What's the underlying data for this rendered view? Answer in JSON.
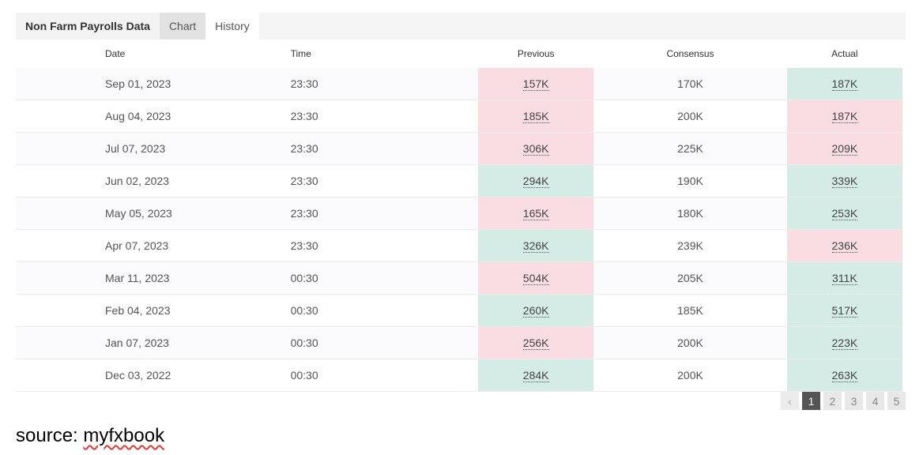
{
  "tabs": {
    "title": "Non Farm Payrolls Data",
    "chart": "Chart",
    "history": "History"
  },
  "columns": [
    "Date",
    "Time",
    "Previous",
    "Consensus",
    "Actual"
  ],
  "rows": [
    {
      "date": "Sep 01, 2023",
      "time": "23:30",
      "previous": "157K",
      "previous_trend": "down",
      "consensus": "170K",
      "actual": "187K",
      "actual_trend": "up"
    },
    {
      "date": "Aug 04, 2023",
      "time": "23:30",
      "previous": "185K",
      "previous_trend": "down",
      "consensus": "200K",
      "actual": "187K",
      "actual_trend": "down"
    },
    {
      "date": "Jul 07, 2023",
      "time": "23:30",
      "previous": "306K",
      "previous_trend": "down",
      "consensus": "225K",
      "actual": "209K",
      "actual_trend": "down"
    },
    {
      "date": "Jun 02, 2023",
      "time": "23:30",
      "previous": "294K",
      "previous_trend": "up",
      "consensus": "190K",
      "actual": "339K",
      "actual_trend": "up"
    },
    {
      "date": "May 05, 2023",
      "time": "23:30",
      "previous": "165K",
      "previous_trend": "down",
      "consensus": "180K",
      "actual": "253K",
      "actual_trend": "up"
    },
    {
      "date": "Apr 07, 2023",
      "time": "23:30",
      "previous": "326K",
      "previous_trend": "up",
      "consensus": "239K",
      "actual": "236K",
      "actual_trend": "down"
    },
    {
      "date": "Mar 11, 2023",
      "time": "00:30",
      "previous": "504K",
      "previous_trend": "down",
      "consensus": "205K",
      "actual": "311K",
      "actual_trend": "up"
    },
    {
      "date": "Feb 04, 2023",
      "time": "00:30",
      "previous": "260K",
      "previous_trend": "up",
      "consensus": "185K",
      "actual": "517K",
      "actual_trend": "up"
    },
    {
      "date": "Jan 07, 2023",
      "time": "00:30",
      "previous": "256K",
      "previous_trend": "down",
      "consensus": "200K",
      "actual": "223K",
      "actual_trend": "up"
    },
    {
      "date": "Dec 03, 2022",
      "time": "00:30",
      "previous": "284K",
      "previous_trend": "up",
      "consensus": "200K",
      "actual": "263K",
      "actual_trend": "up"
    }
  ],
  "pagination": {
    "prev": "‹",
    "pages": [
      "1",
      "2",
      "3",
      "4",
      "5"
    ],
    "current": "1"
  },
  "source": {
    "prefix": "source: ",
    "name": "myfxbook"
  },
  "colors": {
    "up": "#d4ece5",
    "down": "#fadde3"
  }
}
